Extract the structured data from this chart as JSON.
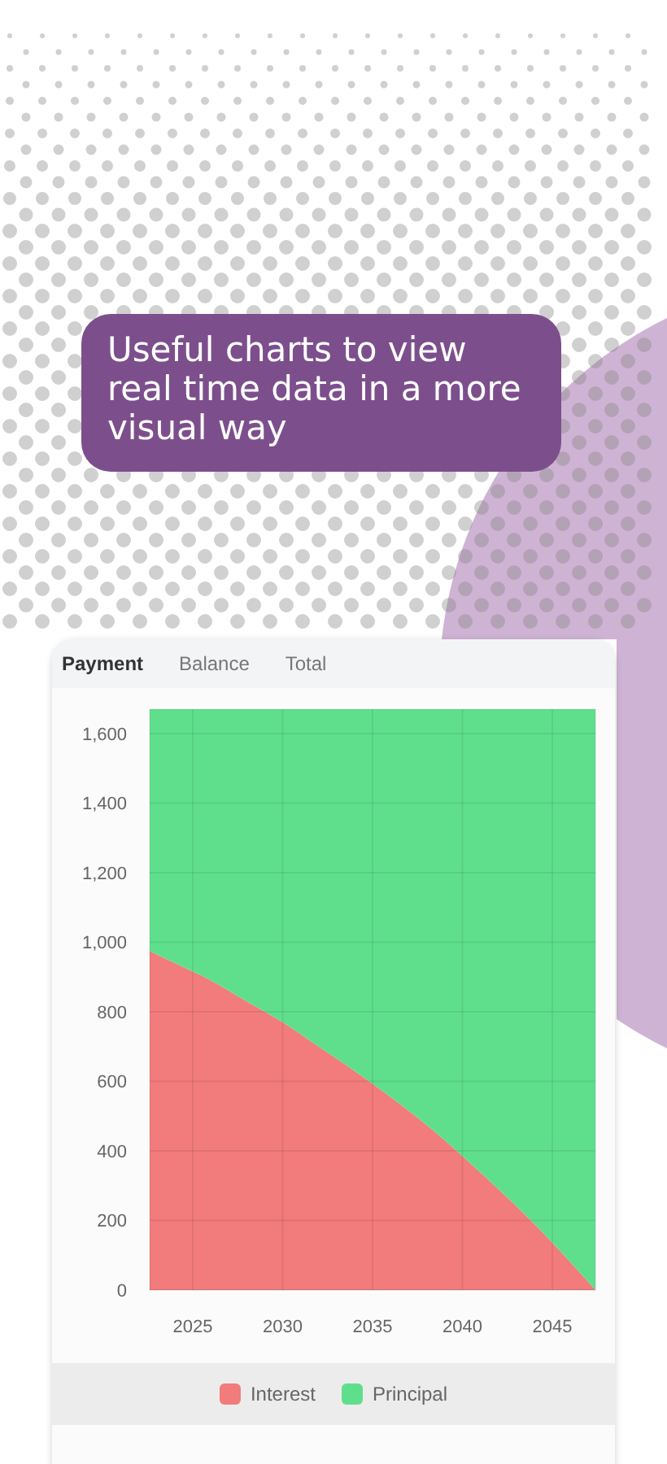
{
  "chart_data": {
    "type": "area",
    "title": "Useful charts to view real time data in a more visual way",
    "annotations": [
      "Payment",
      "Balance",
      "Total"
    ],
    "x": [
      2022.6,
      2024,
      2026,
      2028,
      2030,
      2032,
      2034,
      2036,
      2038,
      2040,
      2042,
      2044,
      2046,
      2047.4
    ],
    "series": [
      {
        "name": "Interest",
        "color": "#f27b7b",
        "values": [
          975,
          940,
          890,
          830,
          770,
          700,
          630,
          555,
          475,
          385,
          290,
          190,
          80,
          0
        ]
      },
      {
        "name": "Principal",
        "color": "#5fdf8c",
        "values": [
          695,
          730,
          780,
          840,
          900,
          970,
          1040,
          1115,
          1195,
          1285,
          1380,
          1480,
          1590,
          1670
        ]
      }
    ],
    "stacked": true,
    "xlim": [
      2022.6,
      2047.4
    ],
    "ylim": [
      0,
      1670
    ],
    "xticks": [
      2025,
      2030,
      2035,
      2040,
      2045
    ],
    "yticks": [
      0,
      200,
      400,
      600,
      800,
      {
        "value": 1000,
        "label": "1,000"
      },
      {
        "value": 1200,
        "label": "1,200"
      },
      {
        "value": 1400,
        "label": "1,400"
      },
      {
        "value": 1600,
        "label": "1,600"
      }
    ],
    "grid": true,
    "legend": "bottom"
  }
}
